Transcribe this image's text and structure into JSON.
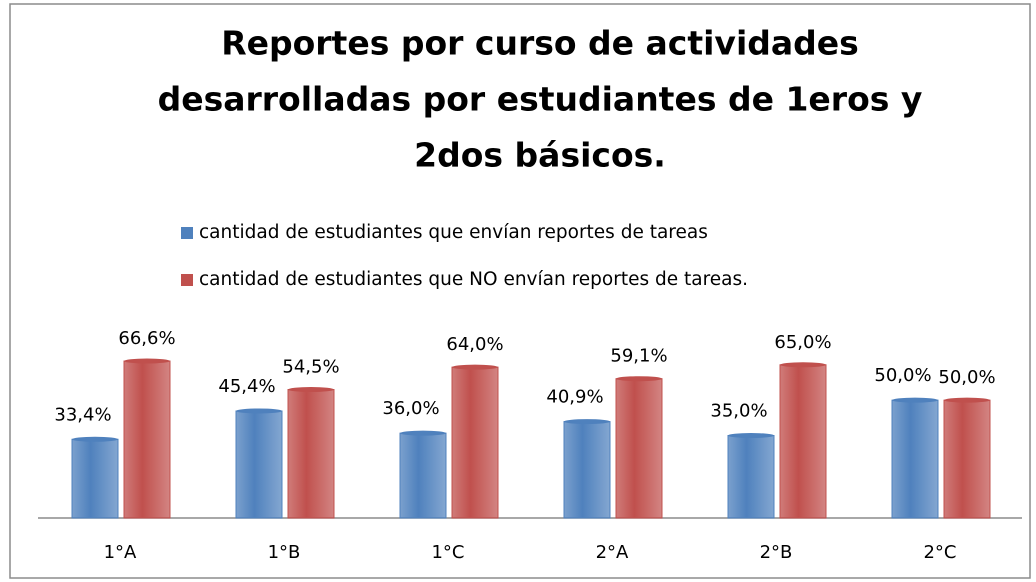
{
  "chart_data": {
    "type": "bar",
    "title": [
      "Reportes por curso de actividades",
      "desarrolladas  por estudiantes de 1eros y",
      "2dos básicos."
    ],
    "categories": [
      "1°A",
      "1°B",
      "1°C",
      "2°A",
      "2°B",
      "2°C"
    ],
    "series": [
      {
        "name": "cantidad de estudiantes que envían reportes de tareas",
        "color": "#4f81bd",
        "values": [
          33.4,
          45.4,
          36.0,
          40.9,
          35.0,
          50.0
        ],
        "value_labels": [
          "33,4%",
          "45,4%",
          "36,0%",
          "40,9%",
          "35,0%",
          "50,0%"
        ]
      },
      {
        "name": "cantidad de estudiantes que NO envían reportes de tareas.",
        "color": "#c0504d",
        "values": [
          66.6,
          54.5,
          64.0,
          59.1,
          65.0,
          50.0
        ],
        "value_labels": [
          "66,6%",
          "54,5%",
          "64,0%",
          "59,1%",
          "65,0%",
          "50,0%"
        ]
      }
    ]
  }
}
